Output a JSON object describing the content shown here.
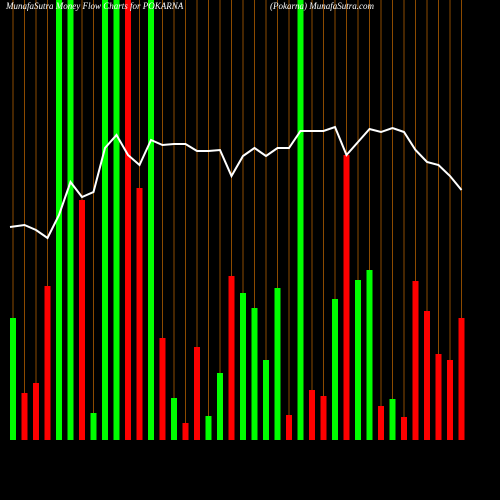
{
  "chart_data": {
    "type": "bar",
    "title": "MunafaSutra Money Flow Charts for POKARNA",
    "subtitle": "(Pokarna) MunafaSutra.com",
    "ylim": [
      0,
      440
    ],
    "line_color": "#ffffff",
    "grid_color": "#8b4a00",
    "values": [
      122,
      47,
      57,
      154,
      440,
      440,
      240,
      27,
      440,
      440,
      440,
      252,
      440,
      102,
      42,
      17,
      93,
      24,
      67,
      164,
      147,
      132,
      80,
      152,
      25,
      440,
      50,
      44,
      141,
      285,
      160,
      170,
      34,
      41,
      23,
      159,
      129,
      86,
      80,
      122
    ],
    "colors": [
      "#00ff00",
      "#ff0000",
      "#ff0000",
      "#ff0000",
      "#00ff00",
      "#00ff00",
      "#ff0000",
      "#00ff00",
      "#00ff00",
      "#00ff00",
      "#ff0000",
      "#ff0000",
      "#00ff00",
      "#ff0000",
      "#00ff00",
      "#ff0000",
      "#ff0000",
      "#00ff00",
      "#00ff00",
      "#ff0000",
      "#00ff00",
      "#00ff00",
      "#00ff00",
      "#00ff00",
      "#ff0000",
      "#00ff00",
      "#ff0000",
      "#ff0000",
      "#00ff00",
      "#ff0000",
      "#00ff00",
      "#00ff00",
      "#ff0000",
      "#00ff00",
      "#ff0000",
      "#ff0000",
      "#ff0000",
      "#ff0000",
      "#ff0000",
      "#ff0000"
    ],
    "line": [
      213,
      215,
      210,
      202,
      225,
      258,
      243,
      248,
      292,
      305,
      285,
      275,
      300,
      295,
      296,
      296,
      289,
      289,
      290,
      264,
      284,
      292,
      284,
      292,
      292,
      309,
      309,
      309,
      313,
      285,
      298,
      311,
      308,
      312,
      308,
      290,
      278,
      275,
      264,
      250
    ]
  }
}
